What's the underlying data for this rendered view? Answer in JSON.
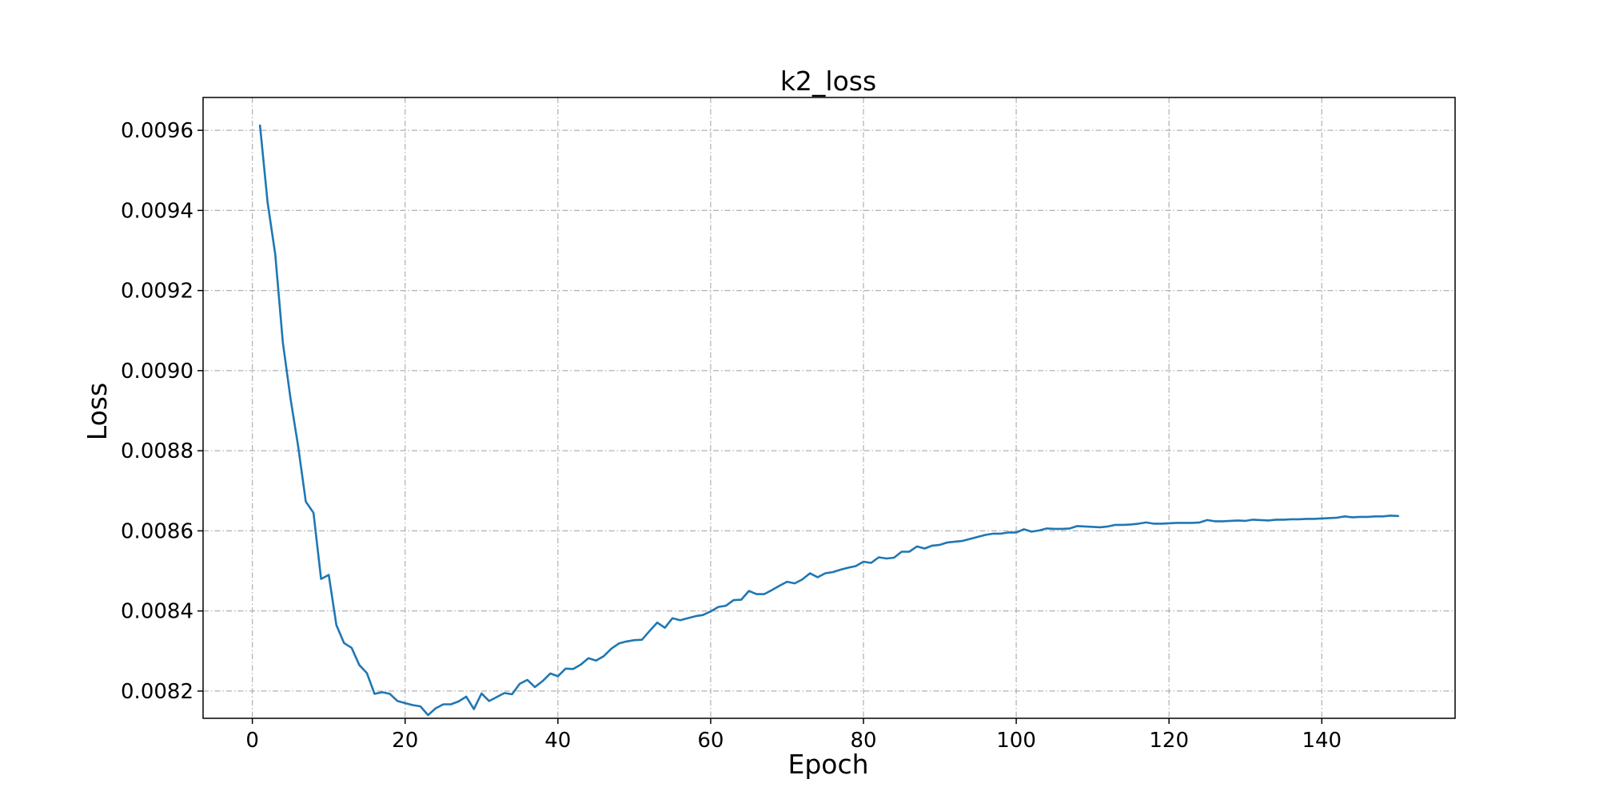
{
  "chart_data": {
    "type": "line",
    "title": "k2_loss",
    "xlabel": "Epoch",
    "ylabel": "Loss",
    "xlim": [
      -6.45,
      157.45
    ],
    "ylim": [
      0.008132,
      0.009682
    ],
    "xticks": [
      0,
      20,
      40,
      60,
      80,
      100,
      120,
      140
    ],
    "yticks": [
      0.0082,
      0.0084,
      0.0086,
      0.0088,
      0.009,
      0.0092,
      0.0094,
      0.0096
    ],
    "xtick_labels": [
      "0",
      "20",
      "40",
      "60",
      "80",
      "100",
      "120",
      "140"
    ],
    "ytick_labels": [
      "0.0082",
      "0.0084",
      "0.0086",
      "0.0088",
      "0.0090",
      "0.0092",
      "0.0094",
      "0.0096"
    ],
    "grid": true,
    "line_color": "#1f77b4",
    "series": [
      {
        "x": [
          1,
          2,
          3,
          4,
          5,
          6,
          7,
          8,
          9,
          10,
          11,
          12,
          13,
          14,
          15,
          16,
          17,
          18,
          19,
          20,
          21,
          22,
          23,
          24,
          25,
          26,
          27,
          28,
          29,
          30,
          31,
          32,
          33,
          34,
          35,
          36,
          37,
          38,
          39,
          40,
          41,
          42,
          43,
          44,
          45,
          46,
          47,
          48,
          49,
          50,
          51,
          52,
          53,
          54,
          55,
          56,
          57,
          58,
          59,
          60,
          61,
          62,
          63,
          64,
          65,
          66,
          67,
          68,
          69,
          70,
          71,
          72,
          73,
          74,
          75,
          76,
          77,
          78,
          79,
          80,
          81,
          82,
          83,
          84,
          85,
          86,
          87,
          88,
          89,
          90,
          91,
          92,
          93,
          94,
          95,
          96,
          97,
          98,
          99,
          100,
          101,
          102,
          103,
          104,
          105,
          106,
          107,
          108,
          109,
          110,
          111,
          112,
          113,
          114,
          115,
          116,
          117,
          118,
          119,
          120,
          121,
          122,
          123,
          124,
          125,
          126,
          127,
          128,
          129,
          130,
          131,
          132,
          133,
          134,
          135,
          136,
          137,
          138,
          139,
          140,
          141,
          142,
          143,
          144,
          145,
          146,
          147,
          148,
          149,
          150
        ],
        "y": [
          0.009612,
          0.00942,
          0.00929,
          0.00907,
          0.00893,
          0.00881,
          0.008673,
          0.008645,
          0.00848,
          0.00849,
          0.008365,
          0.00832,
          0.008308,
          0.008265,
          0.008245,
          0.008193,
          0.008197,
          0.008193,
          0.008175,
          0.00817,
          0.008165,
          0.008162,
          0.00814,
          0.008157,
          0.008167,
          0.008167,
          0.008174,
          0.008186,
          0.008155,
          0.008194,
          0.008175,
          0.008185,
          0.008195,
          0.008192,
          0.008218,
          0.008228,
          0.00821,
          0.008225,
          0.008244,
          0.008237,
          0.008256,
          0.008255,
          0.008266,
          0.008282,
          0.008276,
          0.008287,
          0.008306,
          0.008319,
          0.008324,
          0.008327,
          0.008328,
          0.00835,
          0.008371,
          0.008358,
          0.008382,
          0.008377,
          0.008382,
          0.008387,
          0.00839,
          0.008399,
          0.00841,
          0.008413,
          0.008427,
          0.008428,
          0.00845,
          0.008442,
          0.008442,
          0.008452,
          0.008463,
          0.008473,
          0.008469,
          0.008479,
          0.008494,
          0.008484,
          0.008494,
          0.008497,
          0.008503,
          0.008508,
          0.008512,
          0.008523,
          0.00852,
          0.008534,
          0.008531,
          0.008533,
          0.008548,
          0.008548,
          0.008561,
          0.008556,
          0.008563,
          0.008565,
          0.008571,
          0.008573,
          0.008575,
          0.00858,
          0.008585,
          0.00859,
          0.008593,
          0.008593,
          0.008596,
          0.008596,
          0.008604,
          0.008598,
          0.008601,
          0.008606,
          0.008605,
          0.008605,
          0.008606,
          0.008612,
          0.008611,
          0.00861,
          0.008609,
          0.008611,
          0.008615,
          0.008615,
          0.008616,
          0.008618,
          0.008621,
          0.008618,
          0.008618,
          0.008619,
          0.00862,
          0.00862,
          0.00862,
          0.008621,
          0.008627,
          0.008624,
          0.008624,
          0.008625,
          0.008626,
          0.008625,
          0.008628,
          0.008627,
          0.008626,
          0.008628,
          0.008628,
          0.008629,
          0.008629,
          0.00863,
          0.00863,
          0.008631,
          0.008632,
          0.008633,
          0.008636,
          0.008634,
          0.008635,
          0.008635,
          0.008636,
          0.008636,
          0.008638,
          0.008637
        ]
      }
    ]
  }
}
